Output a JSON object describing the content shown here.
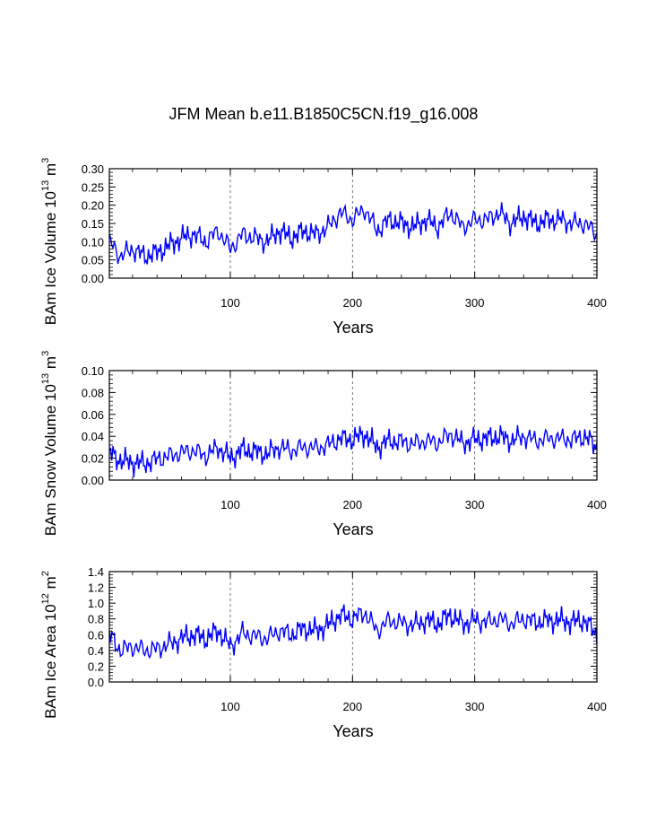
{
  "chart_data": {
    "title": "JFM Mean b.e11.B1850C5CN.f19_g16.008",
    "line_color": "#0000ff",
    "xlim": [
      1,
      400
    ],
    "panels": [
      {
        "type": "line",
        "ylabel_main": "BAm Ice Volume 10",
        "ylabel_exp": "13",
        "ylabel_unit": "m",
        "ylabel_unit_exp": "3",
        "xlabel": "Years",
        "ylim": [
          0,
          0.3
        ],
        "yticks": [
          "0.00",
          "0.05",
          "0.10",
          "0.15",
          "0.20",
          "0.25",
          "0.30"
        ],
        "xticks": [
          "100",
          "200",
          "300",
          "400"
        ],
        "x": [
          1,
          10,
          20,
          30,
          40,
          50,
          60,
          70,
          80,
          90,
          100,
          110,
          120,
          130,
          140,
          150,
          160,
          170,
          180,
          190,
          200,
          210,
          220,
          230,
          240,
          250,
          260,
          270,
          280,
          290,
          300,
          310,
          320,
          330,
          340,
          350,
          360,
          370,
          380,
          390,
          400
        ],
        "values": [
          0.1,
          0.06,
          0.08,
          0.06,
          0.07,
          0.09,
          0.11,
          0.12,
          0.1,
          0.13,
          0.08,
          0.12,
          0.11,
          0.1,
          0.13,
          0.11,
          0.13,
          0.12,
          0.14,
          0.18,
          0.16,
          0.19,
          0.13,
          0.16,
          0.15,
          0.14,
          0.16,
          0.14,
          0.18,
          0.14,
          0.16,
          0.16,
          0.18,
          0.15,
          0.17,
          0.15,
          0.16,
          0.16,
          0.15,
          0.15,
          0.12
        ]
      },
      {
        "type": "line",
        "ylabel_main": "BAm Snow Volume 10",
        "ylabel_exp": "13",
        "ylabel_unit": "m",
        "ylabel_unit_exp": "3",
        "xlabel": "Years",
        "ylim": [
          0,
          0.1
        ],
        "yticks": [
          "0.00",
          "0.02",
          "0.04",
          "0.06",
          "0.08",
          "0.10"
        ],
        "xticks": [
          "100",
          "200",
          "300",
          "400"
        ],
        "x": [
          1,
          10,
          20,
          30,
          40,
          50,
          60,
          70,
          80,
          90,
          100,
          110,
          120,
          130,
          140,
          150,
          160,
          170,
          180,
          190,
          200,
          210,
          220,
          230,
          240,
          250,
          260,
          270,
          280,
          290,
          300,
          310,
          320,
          330,
          340,
          350,
          360,
          370,
          380,
          390,
          400
        ],
        "values": [
          0.025,
          0.018,
          0.016,
          0.015,
          0.019,
          0.022,
          0.025,
          0.027,
          0.022,
          0.03,
          0.02,
          0.028,
          0.026,
          0.024,
          0.03,
          0.027,
          0.03,
          0.029,
          0.032,
          0.038,
          0.037,
          0.042,
          0.03,
          0.036,
          0.035,
          0.033,
          0.036,
          0.034,
          0.042,
          0.034,
          0.037,
          0.038,
          0.04,
          0.036,
          0.04,
          0.036,
          0.038,
          0.038,
          0.037,
          0.04,
          0.03
        ]
      },
      {
        "type": "line",
        "ylabel_main": "BAm Ice Area 10",
        "ylabel_exp": "12",
        "ylabel_unit": "m",
        "ylabel_unit_exp": "2",
        "xlabel": "Years",
        "ylim": [
          0,
          1.4
        ],
        "yticks": [
          "0.0",
          "0.2",
          "0.4",
          "0.6",
          "0.8",
          "1.0",
          "1.2",
          "1.4"
        ],
        "xticks": [
          "100",
          "200",
          "300",
          "400"
        ],
        "x": [
          1,
          10,
          20,
          30,
          40,
          50,
          60,
          70,
          80,
          90,
          100,
          110,
          120,
          130,
          140,
          150,
          160,
          170,
          180,
          190,
          200,
          210,
          220,
          230,
          240,
          250,
          260,
          270,
          280,
          290,
          300,
          310,
          320,
          330,
          340,
          350,
          360,
          370,
          380,
          390,
          400
        ],
        "values": [
          0.6,
          0.4,
          0.45,
          0.4,
          0.42,
          0.48,
          0.55,
          0.6,
          0.55,
          0.65,
          0.45,
          0.62,
          0.58,
          0.55,
          0.65,
          0.6,
          0.68,
          0.65,
          0.72,
          0.85,
          0.8,
          0.88,
          0.65,
          0.78,
          0.75,
          0.72,
          0.78,
          0.74,
          0.85,
          0.74,
          0.78,
          0.76,
          0.8,
          0.74,
          0.8,
          0.76,
          0.78,
          0.78,
          0.76,
          0.78,
          0.6
        ]
      }
    ]
  }
}
